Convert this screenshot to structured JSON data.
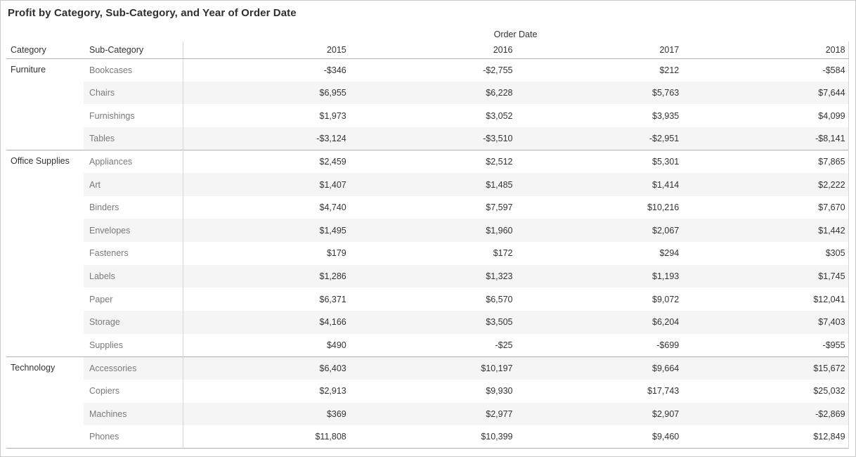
{
  "title": "Profit by Category, Sub-Category, and Year of Order Date",
  "colors": {
    "text_dark": "#333333",
    "text_subcategory": "#7a7a7a",
    "row_band": "#f5f5f5",
    "line_strong": "#b0b0b0",
    "line_light": "#d5d5d5",
    "outer_frame": "#c9c9c9",
    "background": "#ffffff"
  },
  "chart_data": {
    "type": "table",
    "title": "Profit by Category, Sub-Category, and Year of Order Date",
    "measure": "Profit",
    "column_dimension": "Order Date",
    "row_dimensions": [
      "Category",
      "Sub-Category"
    ],
    "columns": [
      "2015",
      "2016",
      "2017",
      "2018"
    ],
    "layout_hints": {
      "row_banding": true,
      "category_section_separators": true,
      "values_alignment": "right"
    },
    "sections": [
      {
        "category": "Furniture",
        "rows": [
          {
            "sub_category": "Bookcases",
            "values": [
              -346,
              -2755,
              212,
              -584
            ],
            "labels": [
              "-$346",
              "-$2,755",
              "$212",
              "-$584"
            ]
          },
          {
            "sub_category": "Chairs",
            "values": [
              6955,
              6228,
              5763,
              7644
            ],
            "labels": [
              "$6,955",
              "$6,228",
              "$5,763",
              "$7,644"
            ]
          },
          {
            "sub_category": "Furnishings",
            "values": [
              1973,
              3052,
              3935,
              4099
            ],
            "labels": [
              "$1,973",
              "$3,052",
              "$3,935",
              "$4,099"
            ]
          },
          {
            "sub_category": "Tables",
            "values": [
              -3124,
              -3510,
              -2951,
              -8141
            ],
            "labels": [
              "-$3,124",
              "-$3,510",
              "-$2,951",
              "-$8,141"
            ]
          }
        ]
      },
      {
        "category": "Office Supplies",
        "rows": [
          {
            "sub_category": "Appliances",
            "values": [
              2459,
              2512,
              5301,
              7865
            ],
            "labels": [
              "$2,459",
              "$2,512",
              "$5,301",
              "$7,865"
            ]
          },
          {
            "sub_category": "Art",
            "values": [
              1407,
              1485,
              1414,
              2222
            ],
            "labels": [
              "$1,407",
              "$1,485",
              "$1,414",
              "$2,222"
            ]
          },
          {
            "sub_category": "Binders",
            "values": [
              4740,
              7597,
              10216,
              7670
            ],
            "labels": [
              "$4,740",
              "$7,597",
              "$10,216",
              "$7,670"
            ]
          },
          {
            "sub_category": "Envelopes",
            "values": [
              1495,
              1960,
              2067,
              1442
            ],
            "labels": [
              "$1,495",
              "$1,960",
              "$2,067",
              "$1,442"
            ]
          },
          {
            "sub_category": "Fasteners",
            "values": [
              179,
              172,
              294,
              305
            ],
            "labels": [
              "$179",
              "$172",
              "$294",
              "$305"
            ]
          },
          {
            "sub_category": "Labels",
            "values": [
              1286,
              1323,
              1193,
              1745
            ],
            "labels": [
              "$1,286",
              "$1,323",
              "$1,193",
              "$1,745"
            ]
          },
          {
            "sub_category": "Paper",
            "values": [
              6371,
              6570,
              9072,
              12041
            ],
            "labels": [
              "$6,371",
              "$6,570",
              "$9,072",
              "$12,041"
            ]
          },
          {
            "sub_category": "Storage",
            "values": [
              4166,
              3505,
              6204,
              7403
            ],
            "labels": [
              "$4,166",
              "$3,505",
              "$6,204",
              "$7,403"
            ]
          },
          {
            "sub_category": "Supplies",
            "values": [
              490,
              -25,
              -699,
              -955
            ],
            "labels": [
              "$490",
              "-$25",
              "-$699",
              "-$955"
            ]
          }
        ]
      },
      {
        "category": "Technology",
        "rows": [
          {
            "sub_category": "Accessories",
            "values": [
              6403,
              10197,
              9664,
              15672
            ],
            "labels": [
              "$6,403",
              "$10,197",
              "$9,664",
              "$15,672"
            ]
          },
          {
            "sub_category": "Copiers",
            "values": [
              2913,
              9930,
              17743,
              25032
            ],
            "labels": [
              "$2,913",
              "$9,930",
              "$17,743",
              "$25,032"
            ]
          },
          {
            "sub_category": "Machines",
            "values": [
              369,
              2977,
              2907,
              -2869
            ],
            "labels": [
              "$369",
              "$2,977",
              "$2,907",
              "-$2,869"
            ]
          },
          {
            "sub_category": "Phones",
            "values": [
              11808,
              10399,
              9460,
              12849
            ],
            "labels": [
              "$11,808",
              "$10,399",
              "$9,460",
              "$12,849"
            ]
          }
        ]
      }
    ]
  }
}
